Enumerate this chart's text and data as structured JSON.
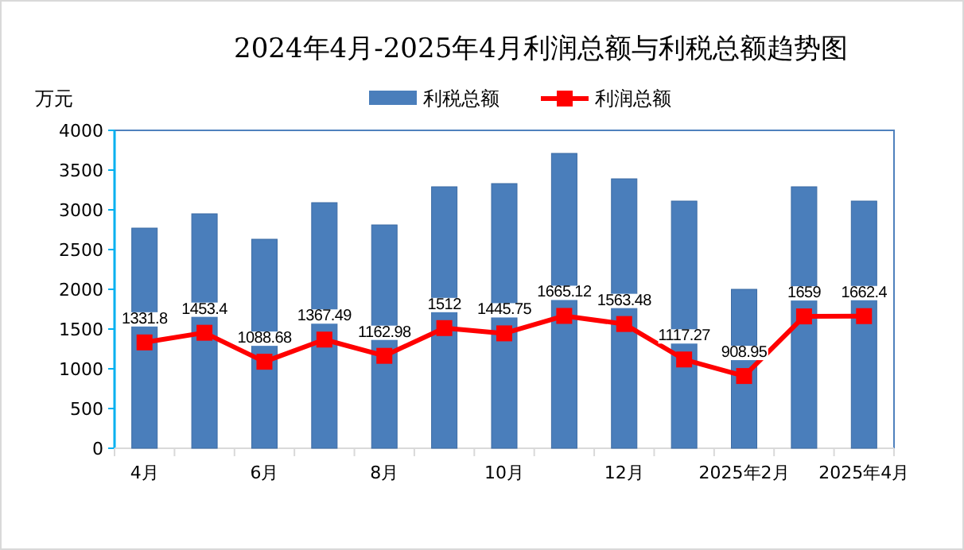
{
  "chart_data": {
    "type": "bar",
    "title": "2024年4月-2025年4月利润总额与利税总额趋势图",
    "ylabel": "万元",
    "categories": [
      "4月",
      null,
      "6月",
      null,
      "8月",
      null,
      "10月",
      null,
      "12月",
      null,
      "2025年2月",
      null,
      "2025年4月"
    ],
    "series": [
      {
        "name": "利税总额",
        "color": "#4a7ebb",
        "values": [
          2770,
          2950,
          2630,
          3090,
          2810,
          3290,
          3330,
          3710,
          3390,
          3110,
          2000,
          3290,
          3110
        ]
      },
      {
        "name": "利润总额",
        "type": "line",
        "color": "#ff0000",
        "marker": "square",
        "values": [
          1331.8,
          1453.4,
          1088.68,
          1367.49,
          1162.98,
          1512,
          1445.75,
          1665.12,
          1563.48,
          1117.27,
          908.95,
          1659,
          1662.4
        ],
        "value_labels": [
          "1331.8",
          "1453.4",
          "1088.68",
          "1367.49",
          "1162.98",
          "1512",
          "1445.75",
          "1665.12",
          "1563.48",
          "1117.27",
          "908.95",
          "1659",
          "1662.4"
        ]
      }
    ],
    "ylim": [
      0,
      4000
    ],
    "yticks": [
      0,
      500,
      1000,
      1500,
      2000,
      2500,
      3000,
      3500,
      4000
    ],
    "legend": "top"
  }
}
